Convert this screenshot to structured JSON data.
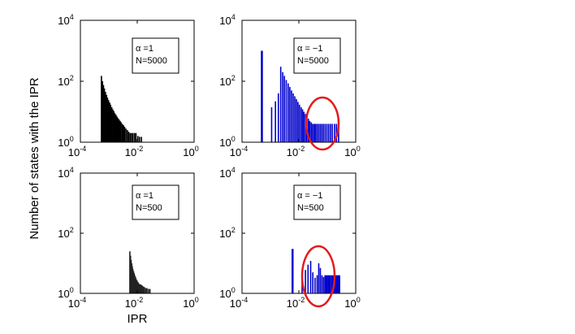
{
  "figure": {
    "ylabel": "Number of states with the IPR",
    "xlabel": "IPR"
  },
  "chart_data": [
    {
      "type": "bar",
      "legend": [
        "α =1",
        "N=5000"
      ],
      "xscale": "log",
      "yscale": "log",
      "xlim": [
        0.0001,
        1
      ],
      "ylim": [
        1,
        10000
      ],
      "xticks": [
        "10",
        "10",
        "10"
      ],
      "xtick_exps": [
        "-4",
        "-2",
        "0"
      ],
      "yticks": [
        "10",
        "10",
        "10"
      ],
      "ytick_exps": [
        "0",
        "2",
        "4"
      ],
      "color": "#000000",
      "x": [
        0.00055,
        0.0006,
        0.00065,
        0.0007,
        0.00076,
        0.00083,
        0.0009,
        0.00098,
        0.00107,
        0.00116,
        0.00127,
        0.00138,
        0.0015,
        0.00163,
        0.00178,
        0.00193,
        0.0021,
        0.0023,
        0.0025,
        0.0027,
        0.003,
        0.0033,
        0.0036,
        0.004,
        0.0045,
        0.005,
        0.0056,
        0.0063,
        0.007,
        0.008,
        0.009,
        0.0105,
        0.012,
        0.014
      ],
      "y": [
        150,
        100,
        75,
        58,
        45,
        36,
        29,
        24,
        20,
        17,
        14,
        12,
        10.5,
        9,
        8,
        7,
        6.2,
        5.6,
        5,
        4.5,
        4,
        3.6,
        3.2,
        2.8,
        2.5,
        2.2,
        2,
        2,
        2,
        2,
        2,
        1.6,
        1.5,
        1.5
      ]
    },
    {
      "type": "bar",
      "legend": [
        "α = −1",
        "N=5000"
      ],
      "xscale": "log",
      "yscale": "log",
      "xlim": [
        0.0001,
        1
      ],
      "ylim": [
        1,
        10000
      ],
      "xticks": [
        "10",
        "10",
        "10"
      ],
      "xtick_exps": [
        "-4",
        "-2",
        "0"
      ],
      "yticks": [
        "10",
        "10",
        "10"
      ],
      "ytick_exps": [
        "0",
        "2",
        "4"
      ],
      "color": "#0000cc",
      "x": [
        0.0005,
        0.0011,
        0.0015,
        0.0019,
        0.0023,
        0.0027,
        0.0031,
        0.0036,
        0.0042,
        0.0048,
        0.0055,
        0.0063,
        0.0072,
        0.0082,
        0.0093,
        0.0105,
        0.012,
        0.0135,
        0.015,
        0.017,
        0.019,
        0.0215,
        0.024,
        0.027,
        0.03,
        0.034,
        0.038,
        0.043,
        0.049,
        0.056,
        0.064,
        0.073,
        0.084,
        0.097,
        0.112,
        0.13,
        0.15,
        0.18,
        0.21,
        0.25
      ],
      "y": [
        1000,
        14,
        22,
        40,
        300,
        200,
        150,
        110,
        85,
        65,
        50,
        40,
        32,
        26,
        21,
        17,
        14,
        12,
        10,
        8.5,
        7,
        6,
        5,
        4.5,
        4,
        4,
        4,
        4,
        4,
        4,
        4,
        4,
        4,
        4,
        4,
        4,
        4,
        4,
        4,
        4
      ],
      "annotation": "circle"
    },
    {
      "type": "bar",
      "legend": [
        "α =1",
        "N=500"
      ],
      "xscale": "log",
      "yscale": "log",
      "xlim": [
        0.0001,
        1
      ],
      "ylim": [
        1,
        10000
      ],
      "xticks": [
        "10",
        "10",
        "10"
      ],
      "xtick_exps": [
        "-4",
        "-2",
        "0"
      ],
      "yticks": [
        "10",
        "10",
        "10"
      ],
      "ytick_exps": [
        "0",
        "2",
        "4"
      ],
      "color": "#222222",
      "x": [
        0.0055,
        0.0058,
        0.0061,
        0.0064,
        0.0067,
        0.007,
        0.0074,
        0.0078,
        0.0082,
        0.0087,
        0.0092,
        0.0098,
        0.0105,
        0.0112,
        0.012,
        0.013,
        0.014,
        0.015,
        0.0165,
        0.018,
        0.02,
        0.022,
        0.025,
        0.028
      ],
      "y": [
        25,
        18,
        13,
        10,
        8,
        6.5,
        5.5,
        4.7,
        4,
        3.5,
        3,
        2.7,
        2.4,
        2.2,
        2,
        2,
        1.9,
        1.8,
        1.7,
        1.6,
        1.5,
        1.5,
        1.4,
        1.4
      ]
    },
    {
      "type": "bar",
      "legend": [
        "α = −1",
        "N=500"
      ],
      "xscale": "log",
      "yscale": "log",
      "xlim": [
        0.0001,
        1
      ],
      "ylim": [
        1,
        10000
      ],
      "xticks": [
        "10",
        "10",
        "10"
      ],
      "xtick_exps": [
        "-4",
        "-2",
        "0"
      ],
      "yticks": [
        "10",
        "10",
        "10"
      ],
      "ytick_exps": [
        "0",
        "2",
        "4"
      ],
      "color": "#0000cc",
      "x": [
        0.006,
        0.013,
        0.017,
        0.021,
        0.026,
        0.031,
        0.037,
        0.044,
        0.05,
        0.057,
        0.065,
        0.074,
        0.083,
        0.092,
        0.1,
        0.11,
        0.12,
        0.13,
        0.145,
        0.16,
        0.175,
        0.19,
        0.21,
        0.23,
        0.25,
        0.27
      ],
      "y": [
        30,
        3,
        6,
        9,
        12,
        5,
        3.3,
        4,
        10,
        7,
        4,
        3.5,
        4,
        4,
        4,
        4,
        4,
        4,
        4,
        4,
        4,
        4,
        4,
        4,
        4,
        4
      ],
      "annotation": "circle"
    }
  ]
}
